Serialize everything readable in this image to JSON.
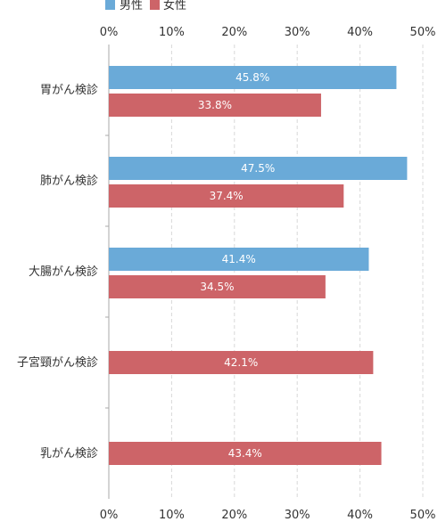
{
  "chart_data": {
    "type": "bar",
    "orientation": "horizontal",
    "categories": [
      "胃がん検診",
      "肺がん検診",
      "大腸がん検診",
      "子宮頸がん検診",
      "乳がん検診"
    ],
    "series": [
      {
        "name": "男性",
        "color": "#6aaad8",
        "values": [
          45.8,
          47.5,
          41.4,
          null,
          null
        ]
      },
      {
        "name": "女性",
        "color": "#cd6468",
        "values": [
          33.8,
          37.4,
          34.5,
          42.1,
          43.4
        ]
      }
    ],
    "data_labels": [
      [
        "45.8%",
        "47.5%",
        "41.4%",
        "",
        ""
      ],
      [
        "33.8%",
        "37.4%",
        "34.5%",
        "42.1%",
        "43.4%"
      ]
    ],
    "xlim": [
      0,
      50
    ],
    "xticks": [
      0,
      10,
      20,
      30,
      40,
      50
    ],
    "xtick_labels": [
      "0%",
      "10%",
      "20%",
      "30%",
      "40%",
      "50%"
    ],
    "grid": "vertical dashed",
    "legend_position": "top-left",
    "title": "",
    "xlabel": "",
    "ylabel": ""
  }
}
